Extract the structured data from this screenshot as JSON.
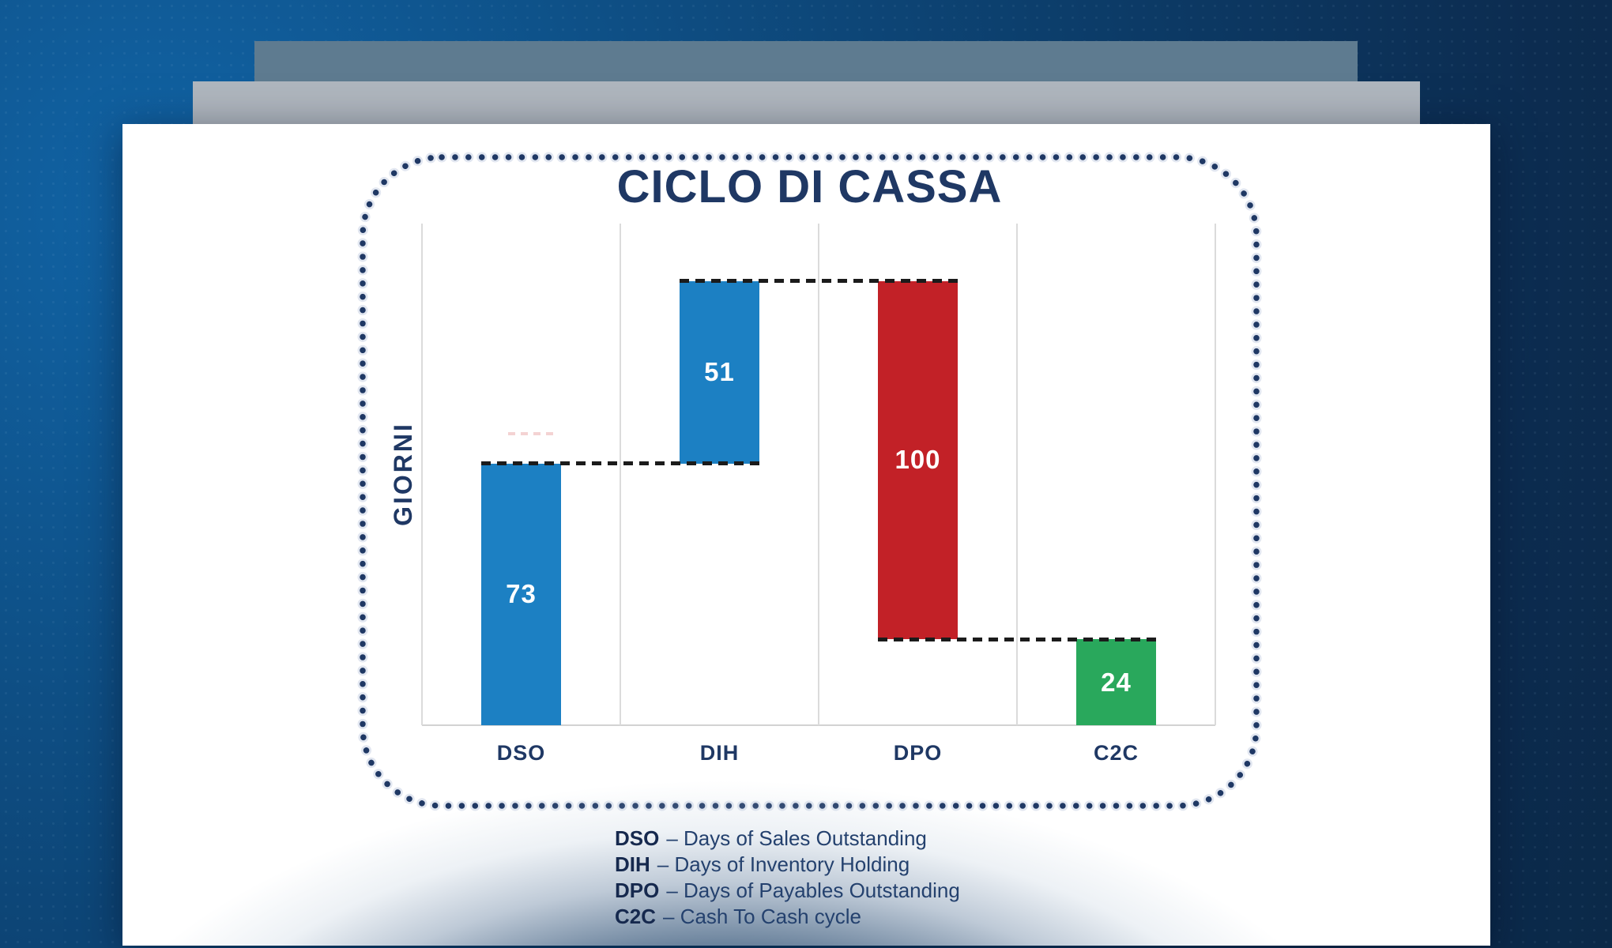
{
  "slide": {
    "title": "CICLO DI CASSA",
    "y_axis_label": "GIORNI"
  },
  "chart_data": {
    "type": "bar",
    "subtype": "waterfall",
    "title": "CICLO DI CASSA",
    "xlabel": "",
    "ylabel": "GIORNI",
    "ylim": [
      0,
      140
    ],
    "y_ticks_visible": false,
    "grid": "vertical column separators only, light gray",
    "legend_position": "below chart, text definitions",
    "categories": [
      "DSO",
      "DIH",
      "DPO",
      "C2C"
    ],
    "values": [
      73,
      51,
      -100,
      24
    ],
    "bars": [
      {
        "label": "DSO",
        "display": "73",
        "value": 73,
        "from": 0,
        "to": 73,
        "direction": "increase",
        "color": "#1C80C3"
      },
      {
        "label": "DIH",
        "display": "51",
        "value": 51,
        "from": 73,
        "to": 124,
        "direction": "increase",
        "color": "#1C80C3"
      },
      {
        "label": "DPO",
        "display": "100",
        "value": 100,
        "from": 124,
        "to": 24,
        "direction": "decrease",
        "color": "#C22127"
      },
      {
        "label": "C2C",
        "display": "24",
        "value": 24,
        "from": 0,
        "to": 24,
        "direction": "total",
        "color": "#29A85C"
      }
    ],
    "connectors": [
      {
        "level": 73,
        "from_bar": 0,
        "to_bar": 1
      },
      {
        "level": 124,
        "from_bar": 1,
        "to_bar": 2
      },
      {
        "level": 24,
        "from_bar": 2,
        "to_bar": 3
      }
    ]
  },
  "legend": {
    "items": [
      {
        "abbr": "DSO",
        "rest": "– Days of Sales Outstanding"
      },
      {
        "abbr": "DIH",
        "rest": "– Days of Inventory Holding"
      },
      {
        "abbr": "DPO",
        "rest": "– Days of Payables Outstanding"
      },
      {
        "abbr": "C2C",
        "rest": "– Cash To Cash cycle"
      }
    ]
  },
  "colors": {
    "background_blue_light": "#1164A6",
    "background_navy_dark": "#0B2948",
    "deck_bar_dark": "#5E7B90",
    "deck_bar_light": "#AFB6BE",
    "page_white": "#FFFFFF",
    "title_navy": "#1F3864",
    "bar_blue": "#1C80C3",
    "bar_red": "#C22127",
    "bar_green": "#29A85C",
    "connector_black": "#1B1B1B",
    "gridline_gray": "#DBDBDB",
    "dotted_border_navy": "#1F3864",
    "value_label_white": "#FFFFFF"
  }
}
